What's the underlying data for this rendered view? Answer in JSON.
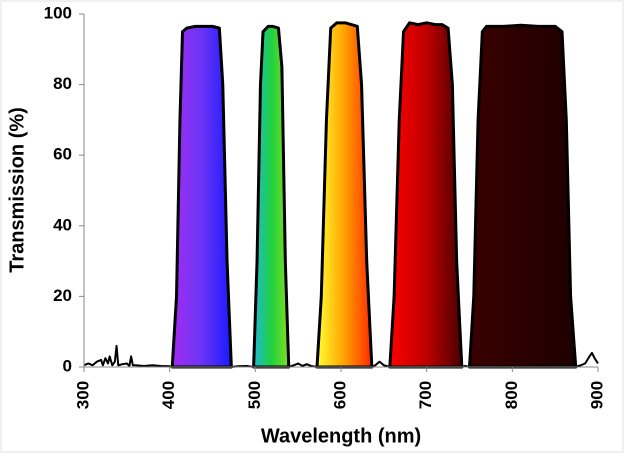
{
  "chart_data": {
    "type": "area",
    "x_label": "Wavelength (nm)",
    "y_label": "Transmission (%)",
    "xlim": [
      300,
      900
    ],
    "xticks": [
      300,
      400,
      500,
      600,
      700,
      800,
      900
    ],
    "ylim": [
      0,
      100
    ],
    "yticks": [
      0,
      20,
      40,
      60,
      80,
      100
    ],
    "line_color": "#000000",
    "baseline": {
      "x": [
        300,
        305,
        310,
        315,
        320,
        322,
        325,
        328,
        330,
        333,
        336,
        338,
        340,
        345,
        350,
        353,
        355,
        357,
        360,
        370,
        380,
        390,
        400,
        403,
        472,
        480,
        490,
        498,
        539,
        545,
        550,
        555,
        560,
        565,
        572,
        636,
        640,
        645,
        650,
        657,
        741,
        745,
        750,
        874,
        880,
        885,
        890,
        893,
        896,
        900
      ],
      "values": [
        0.5,
        1,
        0.5,
        1.5,
        2,
        0.5,
        2.5,
        1,
        3,
        0.5,
        1.5,
        6,
        0.5,
        0.8,
        1,
        0.3,
        3,
        0.5,
        0.5,
        0.3,
        0.5,
        0.3,
        0.2,
        0,
        0,
        0.2,
        0.3,
        0,
        0,
        0.5,
        1,
        0.3,
        0.8,
        0.3,
        0,
        0,
        0.5,
        1.5,
        0.5,
        0,
        0,
        0.3,
        0,
        0,
        0.5,
        1,
        3,
        4,
        2.5,
        1
      ]
    },
    "series": [
      {
        "gradient": [
          "#a22cf0",
          "#6a35f5",
          "#1a1aff"
        ],
        "x": [
          403,
          408,
          412,
          415,
          420,
          430,
          440,
          450,
          458,
          462,
          467,
          472
        ],
        "values": [
          0,
          20,
          70,
          95,
          96,
          96.5,
          96.5,
          96.5,
          96,
          80,
          30,
          0
        ]
      },
      {
        "gradient": [
          "#1fb8d8",
          "#1fd040",
          "#7ee020"
        ],
        "x": [
          498,
          502,
          506,
          509,
          515,
          520,
          527,
          531,
          535,
          539
        ],
        "values": [
          0,
          30,
          80,
          95,
          96.5,
          96.5,
          96,
          85,
          30,
          0
        ]
      },
      {
        "gradient": [
          "#ffff30",
          "#ffa000",
          "#ff2a00"
        ],
        "x": [
          572,
          577,
          583,
          588,
          595,
          605,
          612,
          619,
          624,
          630,
          636
        ],
        "values": [
          0,
          20,
          70,
          96,
          97.5,
          97.5,
          97,
          96.5,
          80,
          30,
          0
        ]
      },
      {
        "gradient": [
          "#ff0000",
          "#c00000",
          "#4a0000"
        ],
        "x": [
          657,
          662,
          668,
          673,
          680,
          690,
          700,
          710,
          718,
          725,
          730,
          735,
          741
        ],
        "values": [
          0,
          20,
          70,
          95,
          97.5,
          97,
          97.5,
          97,
          97,
          96,
          80,
          30,
          0
        ]
      },
      {
        "gradient": [
          "#3a0000",
          "#2c0000",
          "#1e0000"
        ],
        "x": [
          750,
          755,
          760,
          765,
          770,
          790,
          810,
          830,
          850,
          858,
          863,
          868,
          874
        ],
        "values": [
          0,
          20,
          70,
          95,
          96.5,
          96.5,
          96.8,
          96.5,
          96.5,
          95,
          70,
          20,
          0
        ]
      }
    ]
  }
}
